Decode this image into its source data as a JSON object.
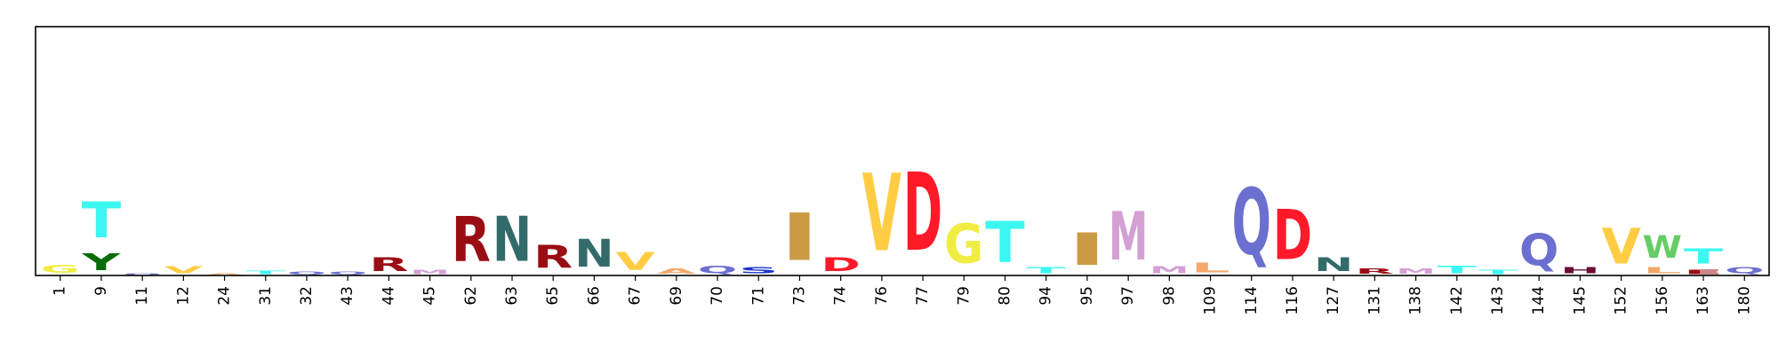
{
  "chart_data": {
    "type": "sequence-logo",
    "title": "",
    "xlabel": "",
    "ylabel": "",
    "ylim": [
      0,
      4.32
    ],
    "grid": false,
    "legend": "none",
    "positions": [
      {
        "label": "1",
        "stack": [
          {
            "letter": "G",
            "value": 0.22,
            "color": "#f0ec44"
          }
        ]
      },
      {
        "label": "9",
        "stack": [
          {
            "letter": "Y",
            "value": 0.46,
            "color": "#0a6b0a"
          },
          {
            "letter": "T",
            "value": 1.0,
            "color": "#3bf7f1"
          }
        ]
      },
      {
        "label": "11",
        "stack": [
          {
            "letter": "Q",
            "value": 0.04,
            "color": "#6b6fcf"
          }
        ]
      },
      {
        "label": "12",
        "stack": [
          {
            "letter": "V",
            "value": 0.19,
            "color": "#ffcc44"
          }
        ]
      },
      {
        "label": "24",
        "stack": [
          {
            "letter": "A",
            "value": 0.05,
            "color": "#f4a76b"
          }
        ]
      },
      {
        "label": "31",
        "stack": [
          {
            "letter": "T",
            "value": 0.1,
            "color": "#3bf7f1"
          }
        ]
      },
      {
        "label": "32",
        "stack": [
          {
            "letter": "Q",
            "value": 0.08,
            "color": "#6b6fcf"
          }
        ]
      },
      {
        "label": "43",
        "stack": [
          {
            "letter": "Q",
            "value": 0.08,
            "color": "#6b6fcf"
          }
        ]
      },
      {
        "label": "44",
        "stack": [
          {
            "letter": "R",
            "value": 0.38,
            "color": "#9b0d14"
          }
        ]
      },
      {
        "label": "45",
        "stack": [
          {
            "letter": "M",
            "value": 0.13,
            "color": "#d4a0d4"
          }
        ]
      },
      {
        "label": "62",
        "stack": [
          {
            "letter": "R",
            "value": 1.25,
            "color": "#9b0d14"
          }
        ]
      },
      {
        "label": "63",
        "stack": [
          {
            "letter": "N",
            "value": 1.25,
            "color": "#336b6b"
          }
        ]
      },
      {
        "label": "65",
        "stack": [
          {
            "letter": "R",
            "value": 0.65,
            "color": "#9b0d14"
          }
        ]
      },
      {
        "label": "66",
        "stack": [
          {
            "letter": "N",
            "value": 0.77,
            "color": "#336b6b"
          }
        ]
      },
      {
        "label": "67",
        "stack": [
          {
            "letter": "V",
            "value": 0.5,
            "color": "#ffcc44"
          }
        ]
      },
      {
        "label": "69",
        "stack": [
          {
            "letter": "A",
            "value": 0.15,
            "color": "#f4a76b"
          }
        ]
      },
      {
        "label": "70",
        "stack": [
          {
            "letter": "Q",
            "value": 0.2,
            "color": "#6b6fcf"
          }
        ]
      },
      {
        "label": "71",
        "stack": [
          {
            "letter": "S",
            "value": 0.17,
            "color": "#1a35cc"
          }
        ]
      },
      {
        "label": "73",
        "stack": [
          {
            "letter": "I",
            "value": 1.32,
            "color": "#cc9944"
          }
        ]
      },
      {
        "label": "74",
        "stack": [
          {
            "letter": "D",
            "value": 0.38,
            "color": "#ff1a2a"
          }
        ]
      },
      {
        "label": "76",
        "stack": [
          {
            "letter": "V",
            "value": 2.15,
            "color": "#ffcc44"
          }
        ]
      },
      {
        "label": "77",
        "stack": [
          {
            "letter": "D",
            "value": 2.18,
            "color": "#ff1a2a"
          }
        ]
      },
      {
        "label": "79",
        "stack": [
          {
            "letter": "G",
            "value": 1.1,
            "color": "#f0ec44"
          }
        ]
      },
      {
        "label": "80",
        "stack": [
          {
            "letter": "T",
            "value": 1.15,
            "color": "#3bf7f1"
          }
        ]
      },
      {
        "label": "94",
        "stack": [
          {
            "letter": "T",
            "value": 0.18,
            "color": "#3bf7f1"
          }
        ]
      },
      {
        "label": "95",
        "stack": [
          {
            "letter": "I",
            "value": 0.9,
            "color": "#cc9944"
          }
        ]
      },
      {
        "label": "97",
        "stack": [
          {
            "letter": "M",
            "value": 1.35,
            "color": "#d4a0d4"
          }
        ]
      },
      {
        "label": "98",
        "stack": [
          {
            "letter": "M",
            "value": 0.19,
            "color": "#d4a0d4"
          }
        ]
      },
      {
        "label": "109",
        "stack": [
          {
            "letter": "L",
            "value": 0.27,
            "color": "#f4a76b"
          }
        ]
      },
      {
        "label": "114",
        "stack": [
          {
            "letter": "Q",
            "value": 1.85,
            "color": "#6b6fcf"
          }
        ]
      },
      {
        "label": "116",
        "stack": [
          {
            "letter": "D",
            "value": 1.4,
            "color": "#ff1a2a"
          }
        ]
      },
      {
        "label": "127",
        "stack": [
          {
            "letter": "N",
            "value": 0.38,
            "color": "#336b6b"
          }
        ]
      },
      {
        "label": "131",
        "stack": [
          {
            "letter": "R",
            "value": 0.15,
            "color": "#9b0d14"
          }
        ]
      },
      {
        "label": "138",
        "stack": [
          {
            "letter": "M",
            "value": 0.15,
            "color": "#d4a0d4"
          }
        ]
      },
      {
        "label": "142",
        "stack": [
          {
            "letter": "T",
            "value": 0.2,
            "color": "#3bf7f1"
          }
        ]
      },
      {
        "label": "143",
        "stack": [
          {
            "letter": "T",
            "value": 0.13,
            "color": "#3bf7f1"
          }
        ]
      },
      {
        "label": "144",
        "stack": [
          {
            "letter": "Q",
            "value": 0.88,
            "color": "#6b6fcf"
          }
        ]
      },
      {
        "label": "145",
        "stack": [
          {
            "letter": "H",
            "value": 0.18,
            "color": "#6b0d35"
          }
        ]
      },
      {
        "label": "152",
        "stack": [
          {
            "letter": "V",
            "value": 1.0,
            "color": "#ffcc44"
          }
        ]
      },
      {
        "label": "156",
        "stack": [
          {
            "letter": "L",
            "value": 0.18,
            "color": "#f4a76b"
          },
          {
            "letter": "W",
            "value": 0.62,
            "color": "#66cc66"
          }
        ]
      },
      {
        "label": "163",
        "stack": [
          {
            "letter": "E",
            "value": 0.12,
            "color": "#9b0d14"
          },
          {
            "letter": "T",
            "value": 0.42,
            "color": "#3bf7f1"
          }
        ]
      },
      {
        "label": "180",
        "stack": [
          {
            "letter": "Q",
            "value": 0.18,
            "color": "#6b6fcf"
          }
        ]
      }
    ]
  }
}
